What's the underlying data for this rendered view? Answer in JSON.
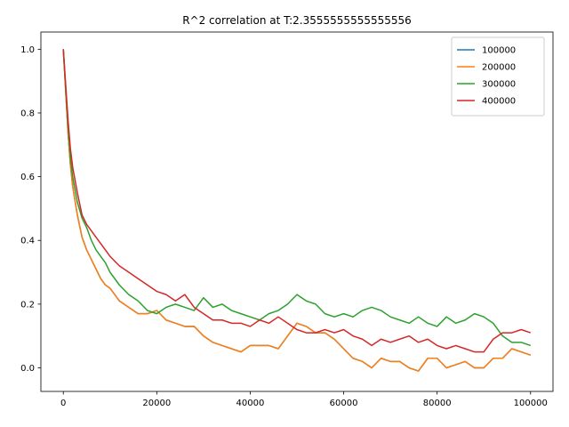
{
  "chart_data": {
    "type": "line",
    "title": "R^2 correlation at T:2.3555555555555556",
    "xlabel": "",
    "ylabel": "",
    "xlim": [
      -4800,
      104800
    ],
    "ylim": [
      -0.074,
      1.054
    ],
    "xticks": [
      0,
      20000,
      40000,
      60000,
      80000,
      100000
    ],
    "yticks": [
      0.0,
      0.2,
      0.4,
      0.6,
      0.8,
      1.0
    ],
    "xtick_labels": [
      "0",
      "20000",
      "40000",
      "60000",
      "80000",
      "100000"
    ],
    "ytick_labels": [
      "0.0",
      "0.2",
      "0.4",
      "0.6",
      "0.8",
      "1.0"
    ],
    "grid": false,
    "legend_position": "top-right",
    "series": [
      {
        "name": "100000",
        "color": "#1f77b4",
        "x": [
          0,
          500,
          1000,
          1500,
          2000,
          3000,
          4000,
          5000,
          6000,
          7000,
          8000,
          9000,
          10000,
          12000,
          14000,
          16000,
          18000,
          20000,
          22000,
          24000,
          26000,
          28000,
          30000,
          32000,
          34000,
          36000,
          38000,
          40000,
          42000,
          44000,
          46000,
          48000,
          50000,
          52000,
          54000,
          56000,
          58000,
          60000,
          62000,
          64000,
          66000,
          68000,
          70000,
          72000,
          74000,
          76000,
          78000,
          80000,
          82000,
          84000,
          86000,
          88000,
          90000,
          92000,
          94000,
          96000,
          98000,
          100000
        ],
        "y": [
          1.0,
          0.87,
          0.74,
          0.64,
          0.57,
          0.48,
          0.41,
          0.37,
          0.34,
          0.31,
          0.28,
          0.26,
          0.25,
          0.21,
          0.19,
          0.17,
          0.17,
          0.18,
          0.15,
          0.14,
          0.13,
          0.13,
          0.1,
          0.08,
          0.07,
          0.06,
          0.05,
          0.07,
          0.07,
          0.07,
          0.06,
          0.1,
          0.14,
          0.13,
          0.11,
          0.11,
          0.09,
          0.06,
          0.03,
          0.02,
          0.0,
          0.03,
          0.02,
          0.02,
          0.0,
          -0.01,
          0.03,
          0.03,
          0.0,
          0.01,
          0.02,
          0.0,
          0.0,
          0.03,
          0.03,
          0.06,
          0.05,
          0.04
        ]
      },
      {
        "name": "200000",
        "color": "#ff7f0e",
        "x": [
          0,
          500,
          1000,
          1500,
          2000,
          3000,
          4000,
          5000,
          6000,
          7000,
          8000,
          9000,
          10000,
          12000,
          14000,
          16000,
          18000,
          20000,
          22000,
          24000,
          26000,
          28000,
          30000,
          32000,
          34000,
          36000,
          38000,
          40000,
          42000,
          44000,
          46000,
          48000,
          50000,
          52000,
          54000,
          56000,
          58000,
          60000,
          62000,
          64000,
          66000,
          68000,
          70000,
          72000,
          74000,
          76000,
          78000,
          80000,
          82000,
          84000,
          86000,
          88000,
          90000,
          92000,
          94000,
          96000,
          98000,
          100000
        ],
        "y": [
          1.0,
          0.87,
          0.74,
          0.64,
          0.57,
          0.48,
          0.41,
          0.37,
          0.34,
          0.31,
          0.28,
          0.26,
          0.25,
          0.21,
          0.19,
          0.17,
          0.17,
          0.18,
          0.15,
          0.14,
          0.13,
          0.13,
          0.1,
          0.08,
          0.07,
          0.06,
          0.05,
          0.07,
          0.07,
          0.07,
          0.06,
          0.1,
          0.14,
          0.13,
          0.11,
          0.11,
          0.09,
          0.06,
          0.03,
          0.02,
          0.0,
          0.03,
          0.02,
          0.02,
          0.0,
          -0.01,
          0.03,
          0.03,
          0.0,
          0.01,
          0.02,
          0.0,
          0.0,
          0.03,
          0.03,
          0.06,
          0.05,
          0.04
        ]
      },
      {
        "name": "300000",
        "color": "#2ca02c",
        "x": [
          0,
          500,
          1000,
          1500,
          2000,
          3000,
          4000,
          5000,
          6000,
          7000,
          8000,
          9000,
          10000,
          12000,
          14000,
          16000,
          18000,
          20000,
          22000,
          24000,
          26000,
          28000,
          30000,
          32000,
          34000,
          36000,
          38000,
          40000,
          42000,
          44000,
          46000,
          48000,
          50000,
          52000,
          54000,
          56000,
          58000,
          60000,
          62000,
          64000,
          66000,
          68000,
          70000,
          72000,
          74000,
          76000,
          78000,
          80000,
          82000,
          84000,
          86000,
          88000,
          90000,
          92000,
          94000,
          96000,
          98000,
          100000
        ],
        "y": [
          1.0,
          0.88,
          0.76,
          0.66,
          0.6,
          0.52,
          0.47,
          0.44,
          0.4,
          0.37,
          0.35,
          0.33,
          0.3,
          0.26,
          0.23,
          0.21,
          0.18,
          0.17,
          0.19,
          0.2,
          0.19,
          0.18,
          0.22,
          0.19,
          0.2,
          0.18,
          0.17,
          0.16,
          0.15,
          0.17,
          0.18,
          0.2,
          0.23,
          0.21,
          0.2,
          0.17,
          0.16,
          0.17,
          0.16,
          0.18,
          0.19,
          0.18,
          0.16,
          0.15,
          0.14,
          0.16,
          0.14,
          0.13,
          0.16,
          0.14,
          0.15,
          0.17,
          0.16,
          0.14,
          0.1,
          0.08,
          0.08,
          0.07
        ]
      },
      {
        "name": "400000",
        "color": "#d62728",
        "x": [
          0,
          500,
          1000,
          1500,
          2000,
          3000,
          4000,
          5000,
          6000,
          7000,
          8000,
          9000,
          10000,
          12000,
          14000,
          16000,
          18000,
          20000,
          22000,
          24000,
          26000,
          28000,
          30000,
          32000,
          34000,
          36000,
          38000,
          40000,
          42000,
          44000,
          46000,
          48000,
          50000,
          52000,
          54000,
          56000,
          58000,
          60000,
          62000,
          64000,
          66000,
          68000,
          70000,
          72000,
          74000,
          76000,
          78000,
          80000,
          82000,
          84000,
          86000,
          88000,
          90000,
          92000,
          94000,
          96000,
          98000,
          100000
        ],
        "y": [
          1.0,
          0.89,
          0.78,
          0.69,
          0.63,
          0.55,
          0.48,
          0.45,
          0.43,
          0.41,
          0.39,
          0.37,
          0.35,
          0.32,
          0.3,
          0.28,
          0.26,
          0.24,
          0.23,
          0.21,
          0.23,
          0.19,
          0.17,
          0.15,
          0.15,
          0.14,
          0.14,
          0.13,
          0.15,
          0.14,
          0.16,
          0.14,
          0.12,
          0.11,
          0.11,
          0.12,
          0.11,
          0.12,
          0.1,
          0.09,
          0.07,
          0.09,
          0.08,
          0.09,
          0.1,
          0.08,
          0.09,
          0.07,
          0.06,
          0.07,
          0.06,
          0.05,
          0.05,
          0.09,
          0.11,
          0.11,
          0.12,
          0.11
        ]
      }
    ]
  }
}
